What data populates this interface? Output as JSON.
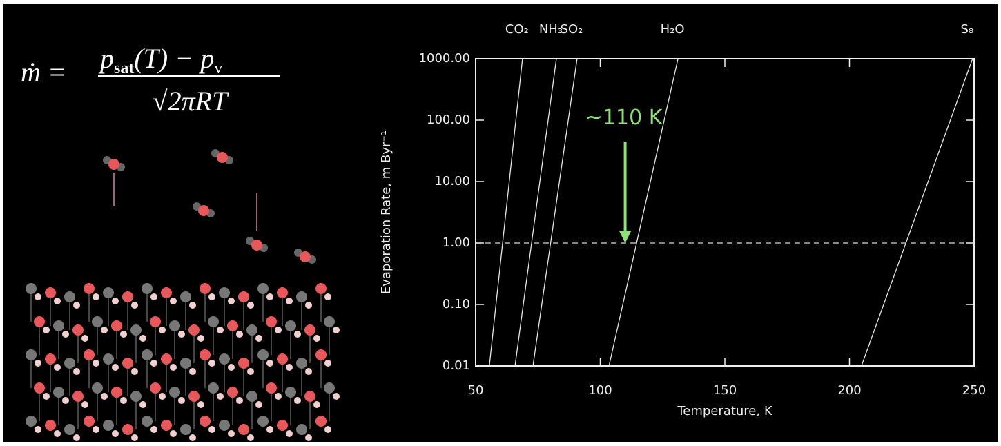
{
  "equation": {
    "lhs": "ṁ =",
    "numerator": "p",
    "numerator_sub": "sat",
    "numerator_rest": "(T) − p",
    "numerator_sub2": "v",
    "denominator": "√2πRT"
  },
  "chart_data": {
    "type": "line",
    "xlabel": "Temperature, K",
    "ylabel": "Evaporation Rate, m Byr⁻¹",
    "xlim": [
      50,
      250
    ],
    "xticks": [
      50,
      100,
      150,
      200,
      250
    ],
    "ylim": [
      0.01,
      1000
    ],
    "log_y": true,
    "yticks": [
      {
        "value": 1000,
        "label": "1000.00"
      },
      {
        "value": 100,
        "label": "100.00"
      },
      {
        "value": 10,
        "label": "10.00"
      },
      {
        "value": 1,
        "label": "1.00"
      },
      {
        "value": 0.1,
        "label": "0.10"
      },
      {
        "value": 0.01,
        "label": "0.01"
      }
    ],
    "series": [
      {
        "name": "CO₂",
        "color": "#e6e6e6",
        "x": [
          55.5,
          68.8
        ],
        "values": [
          0.01,
          1000
        ]
      },
      {
        "name": "NH₃",
        "color": "#e6e6e6",
        "x": [
          65.8,
          82.4
        ],
        "values": [
          0.01,
          1000
        ]
      },
      {
        "name": "SO₂",
        "color": "#e6e6e6",
        "x": [
          73.0,
          90.7
        ],
        "values": [
          0.01,
          1000
        ]
      },
      {
        "name": "H₂O",
        "color": "#e6e6e6",
        "x": [
          103.5,
          131.2
        ],
        "values": [
          0.01,
          1000
        ]
      },
      {
        "name": "S₈",
        "color": "#e6e6e6",
        "x": [
          204.8,
          249.4
        ],
        "values": [
          0.01,
          1000
        ]
      }
    ],
    "hline": {
      "y": 1,
      "style": "dashed"
    },
    "annotation": {
      "text": "~110 K",
      "x": 110,
      "y": 1,
      "color": "#8fe07a"
    }
  }
}
